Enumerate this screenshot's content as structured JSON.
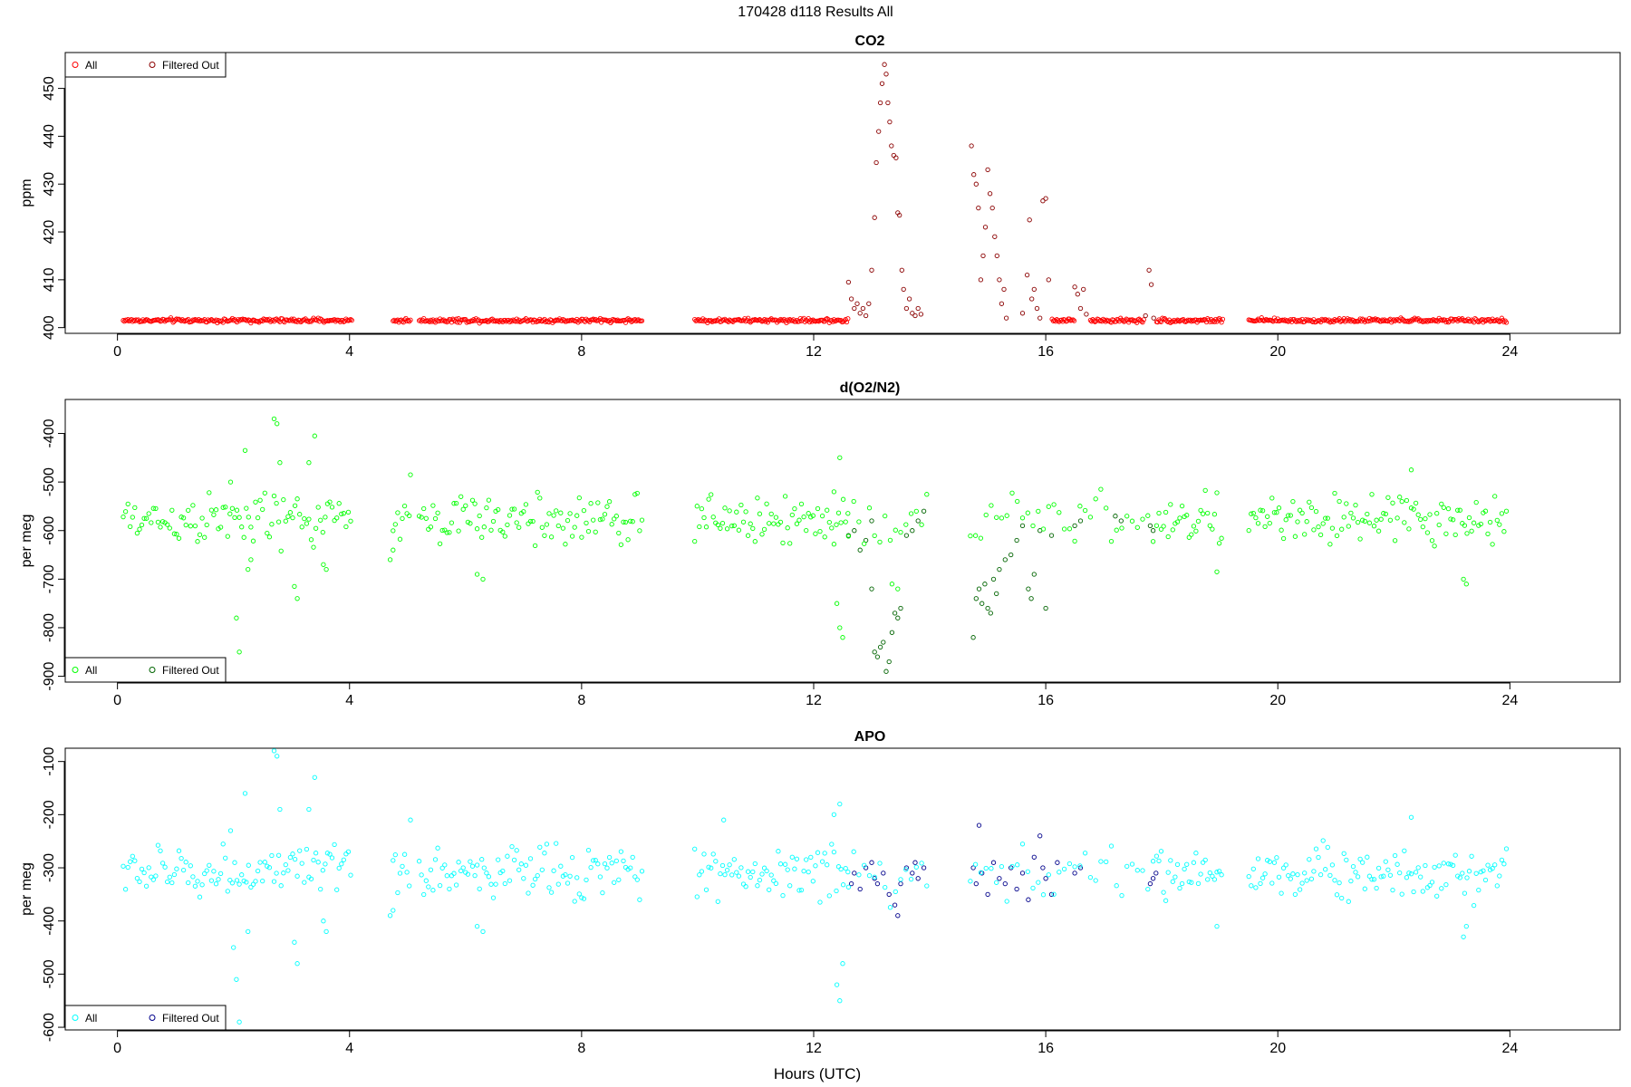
{
  "page_title": "170428   d118   Results All",
  "x_axis_label": "Hours (UTC)",
  "x_ticks": [
    0,
    4,
    8,
    12,
    16,
    20,
    24
  ],
  "legend_labels": {
    "all": "All",
    "filtered": "Filtered Out"
  },
  "chart_data": [
    {
      "type": "scatter",
      "title": "CO2",
      "ylabel": "ppm",
      "xlim": [
        -0.9,
        25.9
      ],
      "ylim": [
        398.8,
        457.5
      ],
      "yticks": [
        400,
        410,
        420,
        430,
        440,
        450
      ],
      "legend_position": "top-left",
      "series": [
        {
          "name": "All",
          "color": "#ff0000",
          "kind": "all",
          "segments": [
            [
              0.1,
              4.05
            ],
            [
              4.75,
              5.05
            ],
            [
              5.2,
              9.05
            ],
            [
              9.95,
              14.0
            ],
            [
              14.95,
              19.05
            ],
            [
              19.5,
              23.95
            ]
          ],
          "baseline": 401.5,
          "noise": 0.3
        },
        {
          "name": "Filtered Out",
          "color": "#8b0000",
          "kind": "filtered",
          "ranges": [
            [
              12.6,
              13.35
            ],
            [
              13.35,
              14.0
            ],
            [
              14.7,
              15.3
            ],
            [
              15.3,
              16.1
            ],
            [
              16.5,
              16.75
            ],
            [
              17.7,
              17.9
            ]
          ],
          "values": [
            [
              12.6,
              409.5
            ],
            [
              12.65,
              406
            ],
            [
              12.7,
              404
            ],
            [
              12.75,
              405
            ],
            [
              12.8,
              403
            ],
            [
              12.85,
              404
            ],
            [
              12.9,
              402.5
            ],
            [
              12.95,
              405
            ],
            [
              13.0,
              412
            ],
            [
              13.05,
              423
            ],
            [
              13.08,
              434.5
            ],
            [
              13.12,
              441
            ],
            [
              13.15,
              447
            ],
            [
              13.18,
              451
            ],
            [
              13.22,
              455
            ],
            [
              13.25,
              453
            ],
            [
              13.28,
              447
            ],
            [
              13.31,
              443
            ],
            [
              13.34,
              438
            ],
            [
              13.38,
              436
            ],
            [
              13.42,
              435.5
            ],
            [
              13.45,
              424
            ],
            [
              13.48,
              423.5
            ],
            [
              13.52,
              412
            ],
            [
              13.55,
              408
            ],
            [
              13.6,
              404
            ],
            [
              13.65,
              406
            ],
            [
              13.7,
              403
            ],
            [
              13.75,
              402.5
            ],
            [
              13.8,
              404
            ],
            [
              13.85,
              402.8
            ],
            [
              14.72,
              438
            ],
            [
              14.76,
              432
            ],
            [
              14.8,
              430
            ],
            [
              14.84,
              425
            ],
            [
              14.88,
              410
            ],
            [
              14.92,
              415
            ],
            [
              14.96,
              421
            ],
            [
              15.0,
              433
            ],
            [
              15.04,
              428
            ],
            [
              15.08,
              425
            ],
            [
              15.12,
              419
            ],
            [
              15.16,
              415
            ],
            [
              15.2,
              410
            ],
            [
              15.24,
              405
            ],
            [
              15.28,
              408
            ],
            [
              15.32,
              402
            ],
            [
              15.6,
              403
            ],
            [
              15.68,
              411
            ],
            [
              15.72,
              422.5
            ],
            [
              15.76,
              406
            ],
            [
              15.8,
              408
            ],
            [
              15.85,
              404
            ],
            [
              15.9,
              402
            ],
            [
              15.95,
              426.5
            ],
            [
              16.0,
              427
            ],
            [
              16.05,
              410
            ],
            [
              16.5,
              408.5
            ],
            [
              16.55,
              407
            ],
            [
              16.6,
              404
            ],
            [
              16.65,
              408
            ],
            [
              16.7,
              402.8
            ],
            [
              17.72,
              402.5
            ],
            [
              17.78,
              412
            ],
            [
              17.82,
              409
            ],
            [
              17.86,
              402
            ]
          ]
        }
      ]
    },
    {
      "type": "scatter",
      "title": "d(O2/N2)",
      "ylabel": "per meg",
      "xlim": [
        -0.9,
        25.9
      ],
      "ylim": [
        -912,
        -330
      ],
      "yticks": [
        -400,
        -500,
        -600,
        -700,
        -800,
        -900
      ],
      "legend_position": "bottom-left",
      "series": [
        {
          "name": "All",
          "color": "#00ff00",
          "kind": "all",
          "segments": [
            [
              0.1,
              4.05
            ],
            [
              4.75,
              5.05
            ],
            [
              5.2,
              9.05
            ],
            [
              9.95,
              14.0
            ],
            [
              14.95,
              19.05
            ],
            [
              19.5,
              23.95
            ]
          ],
          "baseline": -578,
          "noise": 38,
          "outliers": [
            [
              1.95,
              -500
            ],
            [
              2.05,
              -780
            ],
            [
              2.1,
              -850
            ],
            [
              2.2,
              -435
            ],
            [
              2.25,
              -680
            ],
            [
              2.3,
              -660
            ],
            [
              2.7,
              -370
            ],
            [
              2.75,
              -380
            ],
            [
              2.8,
              -460
            ],
            [
              3.05,
              -715
            ],
            [
              3.1,
              -740
            ],
            [
              3.3,
              -460
            ],
            [
              3.4,
              -405
            ],
            [
              3.55,
              -670
            ],
            [
              3.6,
              -680
            ],
            [
              4.7,
              -660
            ],
            [
              4.75,
              -640
            ],
            [
              5.05,
              -485
            ],
            [
              6.2,
              -690
            ],
            [
              6.3,
              -700
            ],
            [
              12.4,
              -750
            ],
            [
              12.45,
              -800
            ],
            [
              12.5,
              -820
            ],
            [
              12.45,
              -450
            ],
            [
              12.35,
              -520
            ],
            [
              13.35,
              -710
            ],
            [
              13.45,
              -720
            ],
            [
              18.95,
              -685
            ],
            [
              23.2,
              -700
            ],
            [
              23.25,
              -710
            ],
            [
              22.3,
              -475
            ]
          ]
        },
        {
          "name": "Filtered Out",
          "color": "#006400",
          "kind": "filtered",
          "ranges": [
            [
              12.6,
              14.0
            ],
            [
              14.7,
              17.9
            ]
          ],
          "values": [
            [
              12.6,
              -610
            ],
            [
              12.7,
              -600
            ],
            [
              12.8,
              -640
            ],
            [
              12.9,
              -620
            ],
            [
              13.0,
              -580
            ],
            [
              13.0,
              -720
            ],
            [
              13.05,
              -850
            ],
            [
              13.1,
              -860
            ],
            [
              13.15,
              -840
            ],
            [
              13.2,
              -830
            ],
            [
              13.25,
              -890
            ],
            [
              13.3,
              -870
            ],
            [
              13.35,
              -810
            ],
            [
              13.4,
              -770
            ],
            [
              13.45,
              -780
            ],
            [
              13.5,
              -760
            ],
            [
              13.6,
              -610
            ],
            [
              13.7,
              -600
            ],
            [
              13.8,
              -580
            ],
            [
              13.9,
              -560
            ],
            [
              14.75,
              -820
            ],
            [
              14.8,
              -740
            ],
            [
              14.85,
              -720
            ],
            [
              14.9,
              -750
            ],
            [
              14.95,
              -710
            ],
            [
              15.0,
              -760
            ],
            [
              15.05,
              -770
            ],
            [
              15.1,
              -700
            ],
            [
              15.15,
              -730
            ],
            [
              15.2,
              -680
            ],
            [
              15.3,
              -660
            ],
            [
              15.4,
              -650
            ],
            [
              15.5,
              -620
            ],
            [
              15.6,
              -590
            ],
            [
              15.7,
              -720
            ],
            [
              15.75,
              -740
            ],
            [
              15.8,
              -690
            ],
            [
              15.9,
              -600
            ],
            [
              16.0,
              -760
            ],
            [
              16.1,
              -610
            ],
            [
              16.5,
              -590
            ],
            [
              16.6,
              -580
            ],
            [
              17.2,
              -570
            ],
            [
              17.3,
              -580
            ],
            [
              17.8,
              -590
            ],
            [
              17.85,
              -600
            ]
          ]
        }
      ]
    },
    {
      "type": "scatter",
      "title": "APO",
      "ylabel": "per meg",
      "xlim": [
        -0.9,
        25.9
      ],
      "ylim": [
        -605,
        -75
      ],
      "yticks": [
        -100,
        -200,
        -300,
        -400,
        -500,
        -600
      ],
      "legend_position": "bottom-left",
      "series": [
        {
          "name": "All",
          "color": "#00ffff",
          "kind": "all",
          "segments": [
            [
              0.1,
              4.05
            ],
            [
              4.75,
              5.05
            ],
            [
              5.2,
              9.05
            ],
            [
              9.95,
              14.0
            ],
            [
              14.95,
              19.05
            ],
            [
              19.5,
              23.95
            ]
          ],
          "baseline": -308,
          "noise": 35,
          "outliers": [
            [
              1.95,
              -230
            ],
            [
              2.0,
              -450
            ],
            [
              2.05,
              -510
            ],
            [
              2.1,
              -590
            ],
            [
              2.2,
              -160
            ],
            [
              2.25,
              -420
            ],
            [
              2.7,
              -80
            ],
            [
              2.75,
              -90
            ],
            [
              2.8,
              -190
            ],
            [
              3.05,
              -440
            ],
            [
              3.1,
              -480
            ],
            [
              3.3,
              -190
            ],
            [
              3.4,
              -130
            ],
            [
              3.55,
              -400
            ],
            [
              3.6,
              -420
            ],
            [
              4.7,
              -390
            ],
            [
              4.75,
              -380
            ],
            [
              5.05,
              -210
            ],
            [
              6.2,
              -410
            ],
            [
              6.3,
              -420
            ],
            [
              12.4,
              -520
            ],
            [
              12.45,
              -550
            ],
            [
              12.5,
              -480
            ],
            [
              12.45,
              -180
            ],
            [
              12.35,
              -200
            ],
            [
              10.45,
              -210
            ],
            [
              18.95,
              -410
            ],
            [
              23.2,
              -430
            ],
            [
              23.25,
              -410
            ],
            [
              22.3,
              -205
            ]
          ]
        },
        {
          "name": "Filtered Out",
          "color": "#00008b",
          "kind": "filtered",
          "ranges": [
            [
              12.6,
              14.0
            ],
            [
              14.7,
              17.9
            ]
          ],
          "values": [
            [
              12.65,
              -330
            ],
            [
              12.7,
              -310
            ],
            [
              12.8,
              -340
            ],
            [
              12.9,
              -300
            ],
            [
              13.0,
              -290
            ],
            [
              13.05,
              -320
            ],
            [
              13.1,
              -330
            ],
            [
              13.2,
              -310
            ],
            [
              13.3,
              -350
            ],
            [
              13.4,
              -370
            ],
            [
              13.45,
              -390
            ],
            [
              13.5,
              -330
            ],
            [
              13.6,
              -300
            ],
            [
              13.7,
              -310
            ],
            [
              13.75,
              -290
            ],
            [
              13.8,
              -320
            ],
            [
              13.9,
              -300
            ],
            [
              14.75,
              -300
            ],
            [
              14.8,
              -330
            ],
            [
              14.85,
              -220
            ],
            [
              14.9,
              -310
            ],
            [
              15.0,
              -350
            ],
            [
              15.1,
              -290
            ],
            [
              15.2,
              -320
            ],
            [
              15.3,
              -330
            ],
            [
              15.4,
              -300
            ],
            [
              15.5,
              -340
            ],
            [
              15.6,
              -310
            ],
            [
              15.7,
              -360
            ],
            [
              15.8,
              -280
            ],
            [
              15.9,
              -240
            ],
            [
              15.95,
              -300
            ],
            [
              16.0,
              -320
            ],
            [
              16.1,
              -350
            ],
            [
              16.2,
              -290
            ],
            [
              16.5,
              -310
            ],
            [
              16.6,
              -300
            ],
            [
              17.8,
              -330
            ],
            [
              17.85,
              -320
            ],
            [
              17.9,
              -310
            ]
          ]
        }
      ]
    }
  ]
}
